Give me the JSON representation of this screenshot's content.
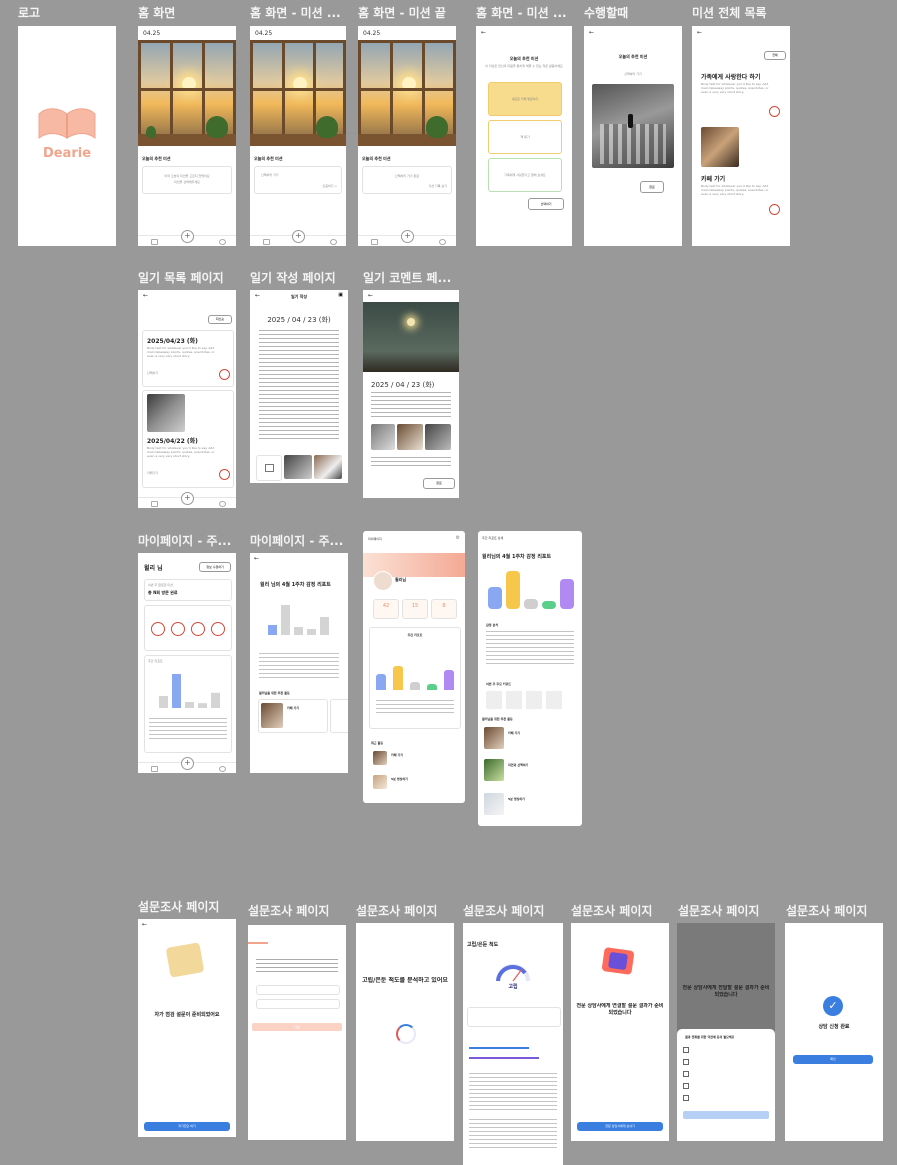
{
  "titles": {
    "logo": "로고",
    "home": "홈 화면",
    "home_mission_in_progress": "홈 화면 - 미션 ...",
    "home_mission_done": "홈 화면 - 미션 끝",
    "home_mission_more": "홈 화면 - 미션 ...",
    "doing": "수행할때",
    "mission_list": "미션 전체 목록",
    "diary_list": "일기 목록 페이지",
    "diary_write": "일기 작성 페이지",
    "diary_comment": "일기 코멘트 페...",
    "mypage_1": "마이페이지 - 주...",
    "mypage_2": "마이페이지 - 주...",
    "survey_1": "설문조사 페이지",
    "survey_2": "설문조사 페이지",
    "survey_3": "설문조사 페이지",
    "survey_4": "설문조사 페이지",
    "survey_5": "설문조사 페이지",
    "survey_6": "설문조사 페이지",
    "survey_7": "설문조사 페이지"
  },
  "logo": {
    "brand": "Dearie",
    "color": "#f0a58c"
  },
  "home": {
    "date": "04.25",
    "mission_heading": "오늘의 추천 미션",
    "empty_text": "아직 오늘의 미션을 고르지 않았어요",
    "empty_sub": "미션을 선택해주세요",
    "in_progress_item": "산책하러 가기",
    "done_item": "산책하러 가기 완료",
    "more_link": "인증하기 >",
    "done_link": "미션 기록 보기"
  },
  "mission_pick": {
    "title": "오늘의 추천 미션",
    "desc": "이 미션은 당신의 마음을 편하게 해줄 수 있는 작은 활동이에요",
    "opt1": "새로운 카페 방문하기",
    "opt2": "책 읽기",
    "opt3": "가족에게 사랑한다고 말해 보세요",
    "btn": "선택하기"
  },
  "doing": {
    "title": "오늘의 추천 미션",
    "subtitle": "산책하러 가기",
    "btn": "완료"
  },
  "mission_list": {
    "filter": "전체",
    "item1_title": "가족에게 사랑한다 하기",
    "item1_desc": "Body text for whatever you'd like to say. Add main takeaway points, quotes, anecdotes, or even a very very short story.",
    "item2_title": "카페 가기",
    "item2_desc": "Body text for whatever you'd like to say. Add main takeaway points, quotes, anecdotes, or even a very very short story."
  },
  "diary_list": {
    "filter": "최신순",
    "entry1_date": "2025/04/23 (화)",
    "entry1_body": "Body text for whatever you'd like to say. Add main takeaway points, quotes, anecdotes, or even a very very short story.",
    "entry1_meta": "산책하기",
    "entry2_date": "2025/04/22 (화)",
    "entry2_body": "Body text for whatever you'd like to say. Add main takeaway points, quotes, anecdotes, or even a very very short story.",
    "entry2_meta": "카페가기"
  },
  "diary_write": {
    "header": "일기 작성",
    "date": "2025 / 04 / 23 (화)"
  },
  "diary_comment": {
    "date": "2025 / 04 / 23 (화)",
    "btn": "완료"
  },
  "mypage1": {
    "name": "윌리 님",
    "btn": "정보 수정하기",
    "mission_heading": "이번 주 완료한 미션",
    "stat1": "총 N회 방문 완료",
    "report_heading": "주간 리포트"
  },
  "mypage2": {
    "report_title": "윌리 님의 4월 1주차 감정 리포트",
    "rec_heading": "윌리님을 위한 추천 활동",
    "rec_item": "카페 가기"
  },
  "mypage3": {
    "header": "마이페이지",
    "name": "윌리님",
    "stat1": "42",
    "stat2": "15",
    "stat3": "8",
    "report_heading": "주간 리포트",
    "recent_heading": "최근 활동",
    "recent1": "카페 가기",
    "recent2": "5분 명상하기"
  },
  "weekly_detail": {
    "header": "주간 리포트 상세",
    "title": "윌리님의 4월 1주차 감정 리포트",
    "analysis": "감정 분석",
    "keywords": "이번 주 주요 키워드",
    "rec_heading": "윌리님을 위한 추천 활동",
    "rec1": "카페 가기",
    "rec2": "자연과 산책하기",
    "rec3": "5분 명상하기"
  },
  "survey": {
    "intro_title": "자가 점검 설문이 준비되었어요",
    "intro_btn": "자가진단 하기",
    "q_btn": "다음",
    "loading_title": "고립/은둔 척도를 분석하고 있어요",
    "result_header": "고립/은둔 척도",
    "result_label": "고립",
    "consult_title": "전문 상담사에게 연결할 설문 결과가 준비되었습니다",
    "consult_btn": "전문 상담사에게 보내기",
    "agree_title": "결과 전화를 위한 약관에 동의 필요해요",
    "overlay_title": "전문 상담사에게 전달할 설문 결과가 준비되었습니다",
    "done_title": "상담 신청 완료",
    "done_btn": "확인"
  },
  "chart_data": [
    {
      "type": "bar",
      "categories": [
        "",
        "",
        "",
        "",
        ""
      ],
      "values": [
        30,
        85,
        15,
        12,
        38
      ]
    },
    {
      "type": "bar",
      "categories": [
        "",
        "",
        "",
        "",
        ""
      ],
      "values": [
        25,
        75,
        20,
        15,
        45
      ]
    }
  ]
}
